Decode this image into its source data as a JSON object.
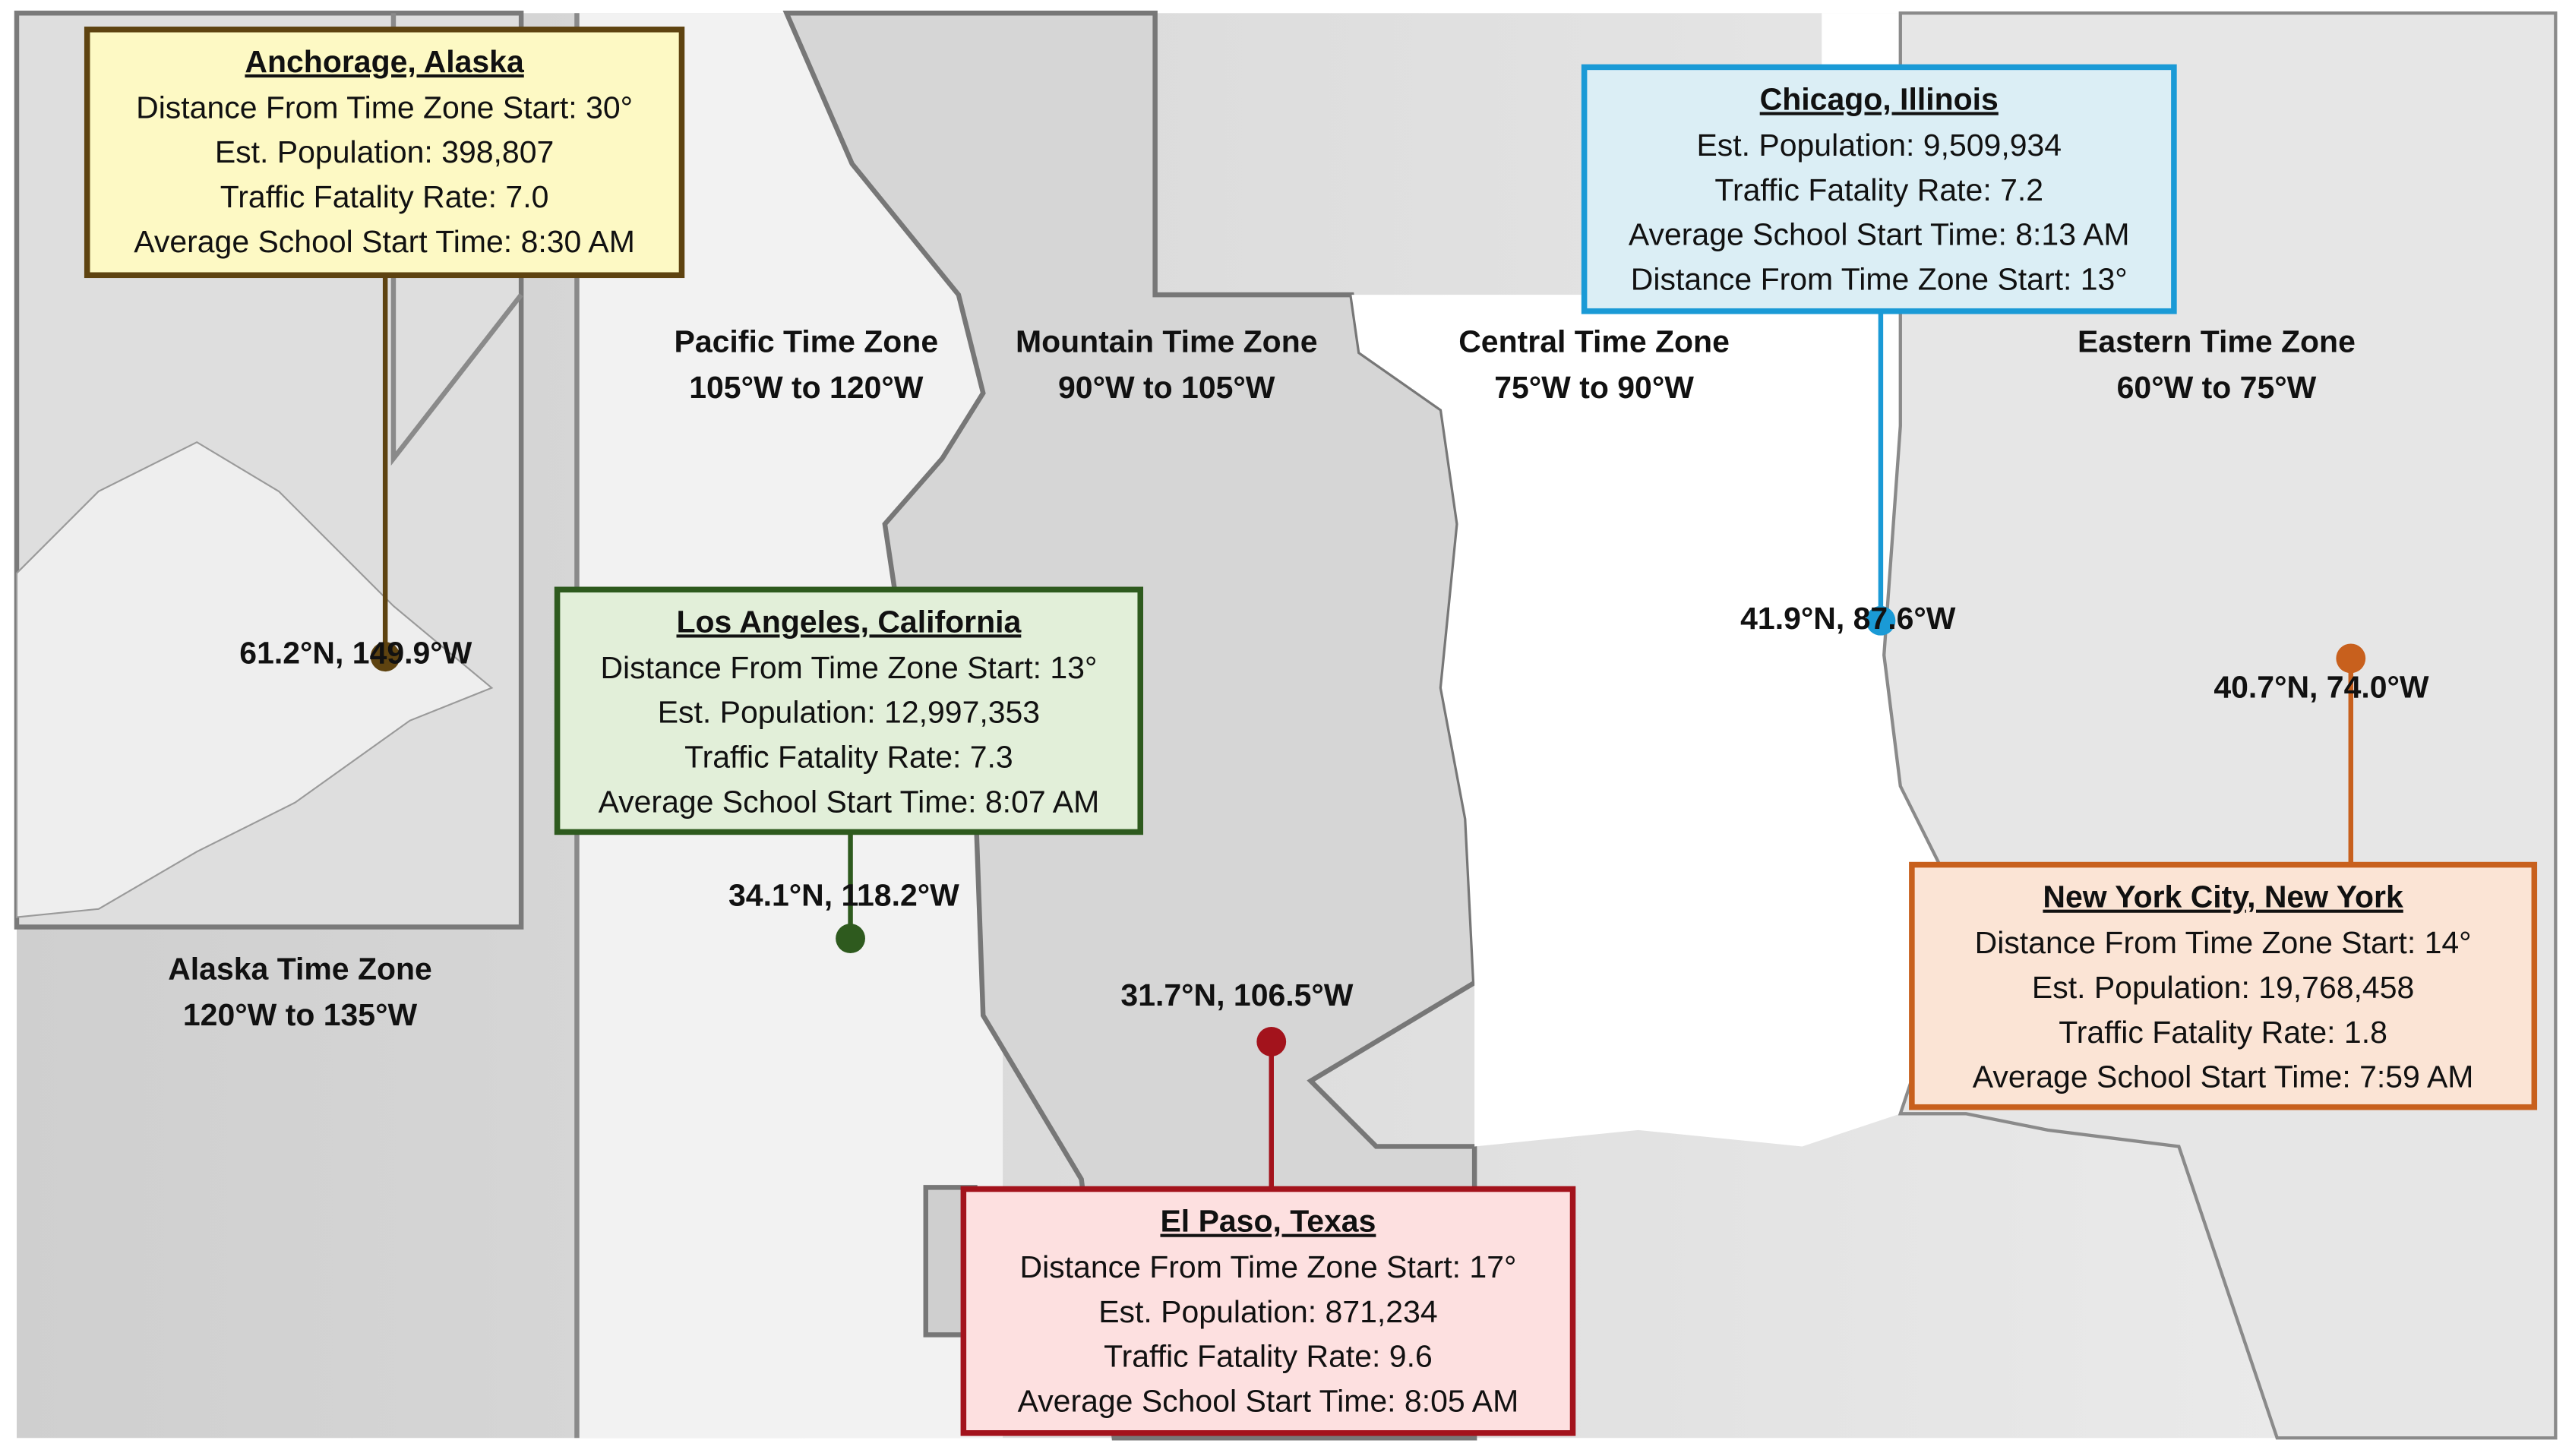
{
  "zones": [
    {
      "name": "Pacific Time Zone",
      "range": "105°W to 120°W"
    },
    {
      "name": "Mountain Time Zone",
      "range": "90°W to 105°W"
    },
    {
      "name": "Central Time Zone",
      "range": "75°W to 90°W"
    },
    {
      "name": "Eastern Time Zone",
      "range": "60°W to 75°W"
    },
    {
      "name": "Alaska Time Zone",
      "range": "120°W to 135°W"
    }
  ],
  "cities": [
    {
      "title": "Anchorage, Alaska",
      "lines": [
        "Distance From Time Zone Start: 30°",
        "Est. Population: 398,807",
        "Traffic Fatality Rate: 7.0",
        "Average School Start Time: 8:30 AM"
      ],
      "coords": "61.2°N, 149.9°W"
    },
    {
      "title": "Chicago, Illinois",
      "lines": [
        "Est. Population: 9,509,934",
        "Traffic Fatality Rate: 7.2",
        "Average School Start Time: 8:13 AM",
        "Distance From Time Zone Start: 13°"
      ],
      "coords": "41.9°N, 87.6°W"
    },
    {
      "title": "Los Angeles, California",
      "lines": [
        "Distance From Time Zone Start: 13°",
        "Est. Population: 12,997,353",
        "Traffic Fatality Rate: 7.3",
        "Average School Start Time: 8:07 AM"
      ],
      "coords": "34.1°N, 118.2°W"
    },
    {
      "title": "El Paso, Texas",
      "lines": [
        "Distance From Time Zone Start: 17°",
        "Est. Population: 871,234",
        "Traffic Fatality Rate: 9.6",
        "Average School Start Time: 8:05 AM"
      ],
      "coords": "31.7°N, 106.5°W"
    },
    {
      "title": "New York City, New York",
      "lines": [
        "Distance From Time Zone Start: 14°",
        "Est. Population: 19,768,458",
        "Traffic Fatality Rate: 1.8",
        "Average School Start Time: 7:59 AM"
      ],
      "coords": "40.7°N, 74.0°W"
    }
  ]
}
